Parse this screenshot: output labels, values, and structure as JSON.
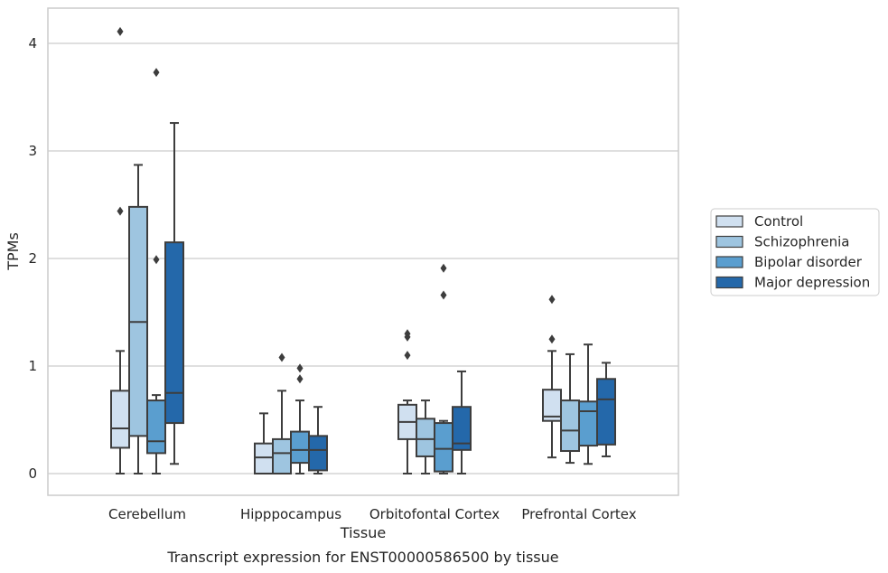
{
  "chart_data": {
    "type": "box",
    "caption": "Transcript expression for ENST00000586500 by tissue",
    "xlabel": "Tissue",
    "ylabel": "TPMs",
    "ylim": [
      -0.2,
      4.3
    ],
    "yticks": [
      0,
      1,
      2,
      3,
      4
    ],
    "grid": "horizontal",
    "legend_position": "right",
    "categories": [
      "Cerebellum",
      "Hipppocampus",
      "Orbitofontal Cortex",
      "Prefrontal Cortex"
    ],
    "series": [
      {
        "name": "Control",
        "color": "#d0e0f0",
        "boxes": [
          {
            "whisker_low": 0,
            "q1": 0.24,
            "median": 0.42,
            "q3": 0.77,
            "whisker_high": 1.14,
            "outliers": [
              2.44,
              4.11
            ]
          },
          {
            "whisker_low": 0,
            "q1": 0.0,
            "median": 0.15,
            "q3": 0.28,
            "whisker_high": 0.56,
            "outliers": []
          },
          {
            "whisker_low": 0,
            "q1": 0.32,
            "median": 0.48,
            "q3": 0.64,
            "whisker_high": 0.68,
            "outliers": [
              1.1,
              1.27,
              1.3
            ]
          },
          {
            "whisker_low": 0.15,
            "q1": 0.49,
            "median": 0.53,
            "q3": 0.78,
            "whisker_high": 1.14,
            "outliers": [
              1.25,
              1.62
            ]
          }
        ]
      },
      {
        "name": "Schizophrenia",
        "color": "#9ec5e0",
        "boxes": [
          {
            "whisker_low": 0,
            "q1": 0.35,
            "median": 1.41,
            "q3": 2.48,
            "whisker_high": 2.87,
            "outliers": []
          },
          {
            "whisker_low": 0,
            "q1": 0.0,
            "median": 0.19,
            "q3": 0.32,
            "whisker_high": 0.77,
            "outliers": [
              1.08
            ]
          },
          {
            "whisker_low": 0,
            "q1": 0.16,
            "median": 0.32,
            "q3": 0.51,
            "whisker_high": 0.68,
            "outliers": []
          },
          {
            "whisker_low": 0.1,
            "q1": 0.21,
            "median": 0.4,
            "q3": 0.68,
            "whisker_high": 1.11,
            "outliers": []
          }
        ]
      },
      {
        "name": "Bipolar disorder",
        "color": "#5a9ecf",
        "boxes": [
          {
            "whisker_low": 0,
            "q1": 0.19,
            "median": 0.3,
            "q3": 0.68,
            "whisker_high": 0.73,
            "outliers": [
              1.99,
              3.73
            ]
          },
          {
            "whisker_low": 0,
            "q1": 0.1,
            "median": 0.22,
            "q3": 0.39,
            "whisker_high": 0.68,
            "outliers": [
              0.88,
              0.98
            ]
          },
          {
            "whisker_low": 0,
            "q1": 0.02,
            "median": 0.23,
            "q3": 0.47,
            "whisker_high": 0.49,
            "outliers": [
              1.66,
              1.91
            ]
          },
          {
            "whisker_low": 0.09,
            "q1": 0.26,
            "median": 0.58,
            "q3": 0.67,
            "whisker_high": 1.2,
            "outliers": []
          }
        ]
      },
      {
        "name": "Major depression",
        "color": "#2468aa",
        "boxes": [
          {
            "whisker_low": 0.09,
            "q1": 0.47,
            "median": 0.75,
            "q3": 2.15,
            "whisker_high": 3.26,
            "outliers": []
          },
          {
            "whisker_low": 0,
            "q1": 0.03,
            "median": 0.22,
            "q3": 0.35,
            "whisker_high": 0.62,
            "outliers": []
          },
          {
            "whisker_low": 0,
            "q1": 0.22,
            "median": 0.28,
            "q3": 0.62,
            "whisker_high": 0.95,
            "outliers": []
          },
          {
            "whisker_low": 0.16,
            "q1": 0.27,
            "median": 0.69,
            "q3": 0.88,
            "whisker_high": 1.03,
            "outliers": []
          }
        ]
      }
    ]
  }
}
